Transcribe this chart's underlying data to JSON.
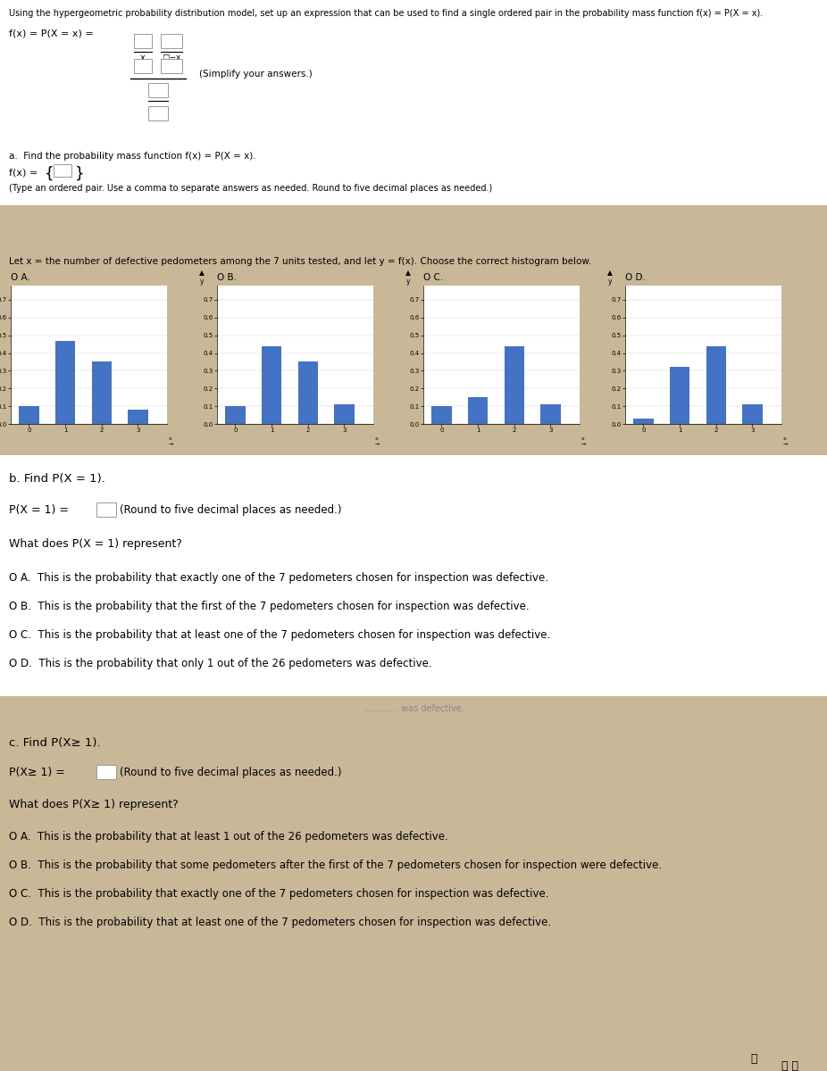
{
  "title_text": "Using the hypergeometric probability distribution model, set up an expression that can be used to find a single ordered pair in the probability mass function f(x) = P(X = x).",
  "bg_color": "#bfaf96",
  "white_bg": "#ffffff",
  "tan_bg": "#c8b898",
  "hist_intro": "Let x = the number of defective pedometers among the 7 units tested, and let y = f(x). Choose the correct histogram below.",
  "hist_labels": [
    "O A.",
    "O B.",
    "O C.",
    "O D."
  ],
  "hist_A_vals": [
    0.1,
    0.47,
    0.35,
    0.08
  ],
  "hist_B_vals": [
    0.1,
    0.44,
    0.35,
    0.11
  ],
  "hist_C_vals": [
    0.1,
    0.15,
    0.44,
    0.11
  ],
  "hist_D_vals": [
    0.03,
    0.32,
    0.44,
    0.11
  ],
  "hist_yticks": [
    0.0,
    0.1,
    0.2,
    0.3,
    0.4,
    0.5,
    0.6,
    0.7
  ],
  "hist_xticks": [
    0,
    1,
    2,
    3
  ],
  "hist_bar_color": "#4472c4",
  "section_b_opts": [
    "O A.  This is the probability that exactly one of the 7 pedometers chosen for inspection was defective.",
    "O B.  This is the probability that the first of the 7 pedometers chosen for inspection was defective.",
    "O C.  This is the probability that at least one of the 7 pedometers chosen for inspection was defective.",
    "O D.  This is the probability that only 1 out of the 26 pedometers was defective."
  ],
  "section_c_opts": [
    "O A.  This is the probability that at least 1 out of the 26 pedometers was defective.",
    "O B.  This is the probability that some pedometers after the first of the 7 pedometers chosen for inspection were defective.",
    "O C.  This is the probability that exactly one of the 7 pedometers chosen for inspection was defective.",
    "O D.  This is the probability that at least one of the 7 pedometers chosen for inspection was defective."
  ]
}
